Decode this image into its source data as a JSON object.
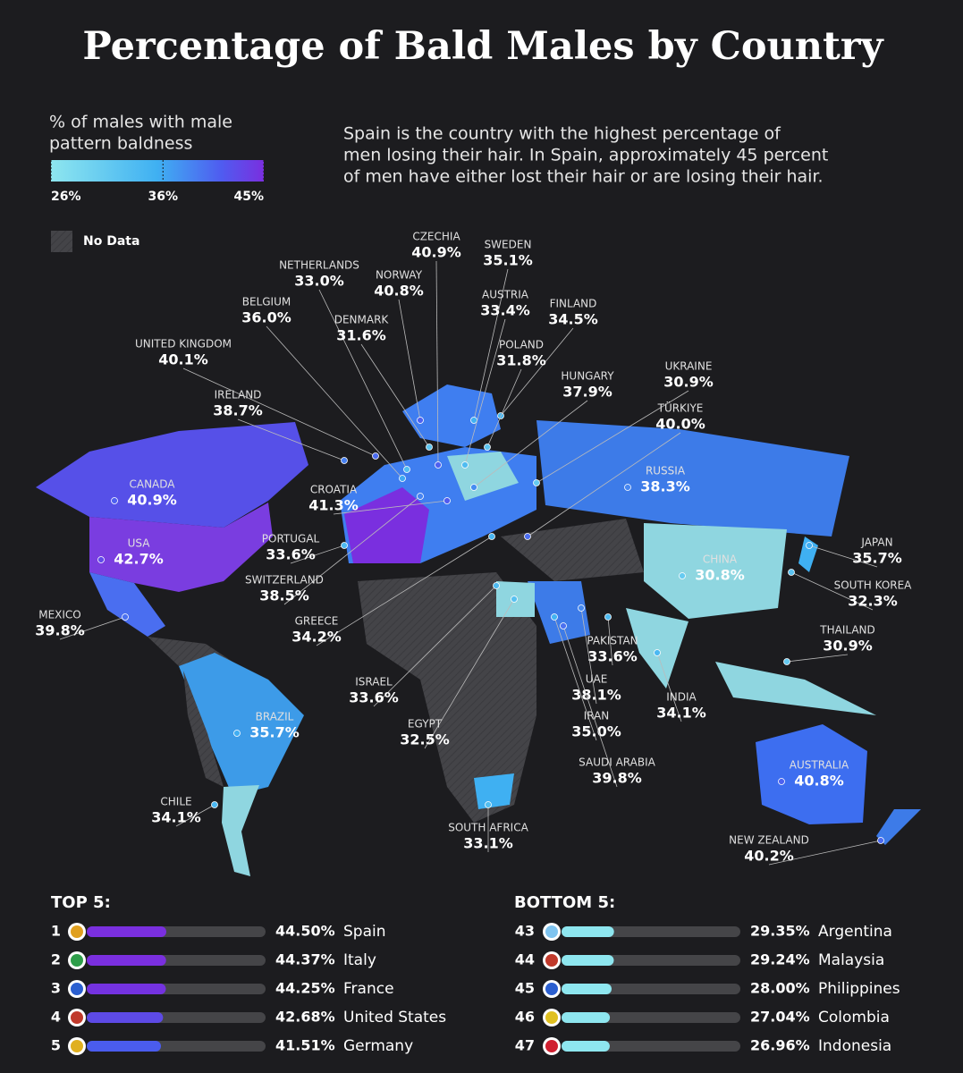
{
  "title": "Percentage of Bald Males by Country",
  "legend": {
    "label_lines": [
      "% of males with male",
      "pattern baldness"
    ],
    "ticks": [
      {
        "value": 26,
        "label": "26%"
      },
      {
        "value": 36,
        "label": "36%"
      },
      {
        "value": 45,
        "label": "45%"
      }
    ],
    "no_data": "No Data"
  },
  "description_lines": [
    "Spain is the country with the highest percentage of",
    "men losing their hair. In Spain, approximately 45 percent",
    "of men have either lost their hair or are losing their hair."
  ],
  "countries": [
    {
      "name": "CZECHIA",
      "value": 40.9,
      "value_label": "40.9%"
    },
    {
      "name": "SWEDEN",
      "value": 35.1,
      "value_label": "35.1%"
    },
    {
      "name": "NETHERLANDS",
      "value": 33.0,
      "value_label": "33.0%"
    },
    {
      "name": "NORWAY",
      "value": 40.8,
      "value_label": "40.8%"
    },
    {
      "name": "AUSTRIA",
      "value": 33.4,
      "value_label": "33.4%"
    },
    {
      "name": "FINLAND",
      "value": 34.5,
      "value_label": "34.5%"
    },
    {
      "name": "BELGIUM",
      "value": 36.0,
      "value_label": "36.0%"
    },
    {
      "name": "DENMARK",
      "value": 31.6,
      "value_label": "31.6%"
    },
    {
      "name": "UNITED KINGDOM",
      "value": 40.1,
      "value_label": "40.1%"
    },
    {
      "name": "POLAND",
      "value": 31.8,
      "value_label": "31.8%"
    },
    {
      "name": "UKRAINE",
      "value": 30.9,
      "value_label": "30.9%"
    },
    {
      "name": "HUNGARY",
      "value": 37.9,
      "value_label": "37.9%"
    },
    {
      "name": "IRELAND",
      "value": 38.7,
      "value_label": "38.7%"
    },
    {
      "name": "TÜRKIYE",
      "value": 40.0,
      "value_label": "40.0%"
    },
    {
      "name": "RUSSIA",
      "value": 38.3,
      "value_label": "38.3%"
    },
    {
      "name": "CANADA",
      "value": 40.9,
      "value_label": "40.9%"
    },
    {
      "name": "CROATIA",
      "value": 41.3,
      "value_label": "41.3%"
    },
    {
      "name": "USA",
      "value": 42.7,
      "value_label": "42.7%"
    },
    {
      "name": "PORTUGAL",
      "value": 33.6,
      "value_label": "33.6%"
    },
    {
      "name": "JAPAN",
      "value": 35.7,
      "value_label": "35.7%"
    },
    {
      "name": "CHINA",
      "value": 30.8,
      "value_label": "30.8%"
    },
    {
      "name": "SWITZERLAND",
      "value": 38.5,
      "value_label": "38.5%"
    },
    {
      "name": "SOUTH KOREA",
      "value": 32.3,
      "value_label": "32.3%"
    },
    {
      "name": "MEXICO",
      "value": 39.8,
      "value_label": "39.8%"
    },
    {
      "name": "GREECE",
      "value": 34.2,
      "value_label": "34.2%"
    },
    {
      "name": "THAILAND",
      "value": 30.9,
      "value_label": "30.9%"
    },
    {
      "name": "PAKISTAN",
      "value": 33.6,
      "value_label": "33.6%"
    },
    {
      "name": "UAE",
      "value": 38.1,
      "value_label": "38.1%"
    },
    {
      "name": "ISRAEL",
      "value": 33.6,
      "value_label": "33.6%"
    },
    {
      "name": "INDIA",
      "value": 34.1,
      "value_label": "34.1%"
    },
    {
      "name": "BRAZIL",
      "value": 35.7,
      "value_label": "35.7%"
    },
    {
      "name": "IRAN",
      "value": 35.0,
      "value_label": "35.0%"
    },
    {
      "name": "EGYPT",
      "value": 32.5,
      "value_label": "32.5%"
    },
    {
      "name": "SAUDI ARABIA",
      "value": 39.8,
      "value_label": "39.8%"
    },
    {
      "name": "AUSTRALIA",
      "value": 40.8,
      "value_label": "40.8%"
    },
    {
      "name": "CHILE",
      "value": 34.1,
      "value_label": "34.1%"
    },
    {
      "name": "SOUTH AFRICA",
      "value": 33.1,
      "value_label": "33.1%"
    },
    {
      "name": "NEW ZEALAND",
      "value": 40.2,
      "value_label": "40.2%"
    }
  ],
  "top": {
    "heading": "TOP 5:",
    "rows": [
      {
        "rank": 1,
        "value": 44.5,
        "value_label": "44.50%",
        "country": "Spain"
      },
      {
        "rank": 2,
        "value": 44.37,
        "value_label": "44.37%",
        "country": "Italy"
      },
      {
        "rank": 3,
        "value": 44.25,
        "value_label": "44.25%",
        "country": "France"
      },
      {
        "rank": 4,
        "value": 42.68,
        "value_label": "42.68%",
        "country": "United States"
      },
      {
        "rank": 5,
        "value": 41.51,
        "value_label": "41.51%",
        "country": "Germany"
      }
    ]
  },
  "bottom": {
    "heading": "BOTTOM 5:",
    "rows": [
      {
        "rank": 43,
        "value": 29.35,
        "value_label": "29.35%",
        "country": "Argentina"
      },
      {
        "rank": 44,
        "value": 29.24,
        "value_label": "29.24%",
        "country": "Malaysia"
      },
      {
        "rank": 45,
        "value": 28.0,
        "value_label": "28.00%",
        "country": "Philippines"
      },
      {
        "rank": 46,
        "value": 27.04,
        "value_label": "27.04%",
        "country": "Colombia"
      },
      {
        "rank": 47,
        "value": 26.96,
        "value_label": "26.96%",
        "country": "Indonesia"
      }
    ]
  }
}
